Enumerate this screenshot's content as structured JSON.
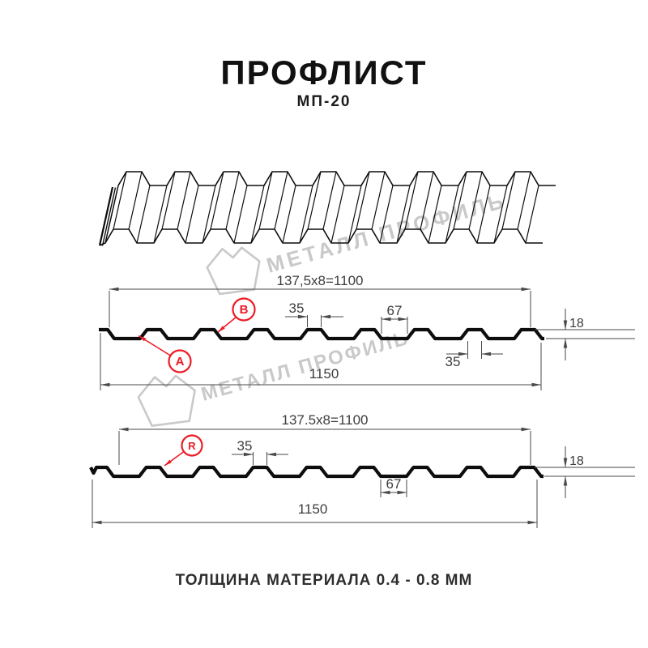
{
  "title": "ПРОФЛИСТ",
  "subtitle": "МП-20",
  "footer": "ТОЛЩИНА МАТЕРИАЛА 0.4 - 0.8 ММ",
  "watermark": {
    "text": "МЕТАЛЛ ПРОФИЛЬ"
  },
  "colors": {
    "accent_red": "#ec1c24",
    "drawing_black": "#0d0d0d",
    "dimension_gray": "#4a4a4a",
    "watermark_gray": "#c9c9c9"
  },
  "section_top": {
    "pitch_label": "137,5x8=1100",
    "overall_width": "1150",
    "rib_top_width": "35",
    "valley_width": "67",
    "profile_height": "18",
    "rib_top_width_right": "35",
    "marker_a": "A",
    "marker_b": "B"
  },
  "section_bottom": {
    "pitch_label": "137.5x8=1100",
    "overall_width": "1150",
    "rib_top_width": "35",
    "valley_width": "67",
    "profile_height": "18",
    "marker_r": "R"
  }
}
